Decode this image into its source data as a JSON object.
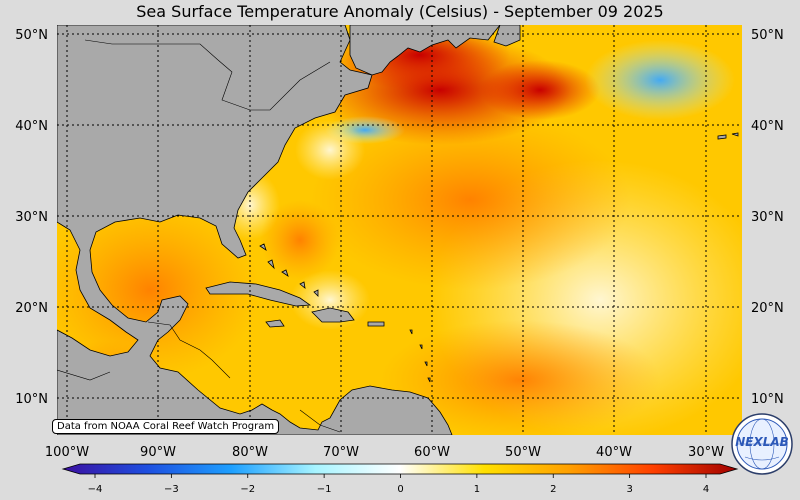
{
  "title": "Sea Surface Temperature Anomaly (Celsius) - September 09 2025",
  "map": {
    "lat_labels": [
      "50°N",
      "40°N",
      "30°N",
      "20°N",
      "10°N"
    ],
    "lon_labels": [
      "100°W",
      "90°W",
      "80°W",
      "70°W",
      "60°W",
      "50°W",
      "40°W",
      "30°W"
    ],
    "credit": "Data from NOAA Coral Reef Watch Program",
    "land_color": "#a9a9a9"
  },
  "colorbar": {
    "ticks": [
      "−4",
      "−3",
      "−2",
      "−1",
      "0",
      "1",
      "2",
      "3",
      "4"
    ],
    "range": [
      -4,
      4
    ],
    "colors": [
      "#3b0fa0",
      "#1e4fe0",
      "#1ea0ff",
      "#a8f4ff",
      "#ffffff",
      "#ffe000",
      "#ffa000",
      "#ff4000",
      "#a00000"
    ]
  },
  "logo": {
    "text": "NEXLAB",
    "icon": "nexlab-globe-logo"
  }
}
